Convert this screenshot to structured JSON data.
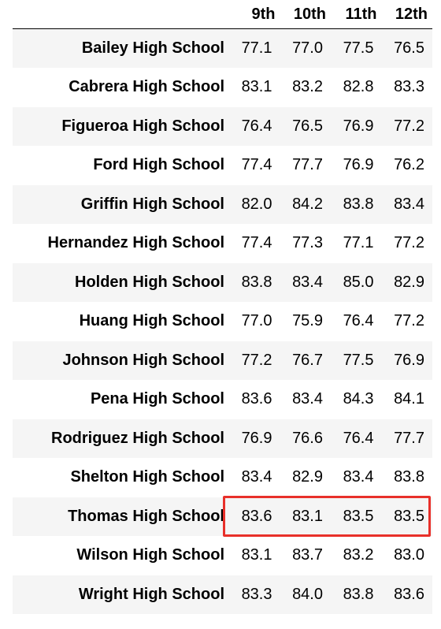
{
  "table": {
    "columns": [
      "9th",
      "10th",
      "11th",
      "12th"
    ],
    "rows": [
      {
        "school": "Bailey High School",
        "values": [
          "77.1",
          "77.0",
          "77.5",
          "76.5"
        ]
      },
      {
        "school": "Cabrera High School",
        "values": [
          "83.1",
          "83.2",
          "82.8",
          "83.3"
        ]
      },
      {
        "school": "Figueroa High School",
        "values": [
          "76.4",
          "76.5",
          "76.9",
          "77.2"
        ]
      },
      {
        "school": "Ford High School",
        "values": [
          "77.4",
          "77.7",
          "76.9",
          "76.2"
        ]
      },
      {
        "school": "Griffin High School",
        "values": [
          "82.0",
          "84.2",
          "83.8",
          "83.4"
        ]
      },
      {
        "school": "Hernandez High School",
        "values": [
          "77.4",
          "77.3",
          "77.1",
          "77.2"
        ]
      },
      {
        "school": "Holden High School",
        "values": [
          "83.8",
          "83.4",
          "85.0",
          "82.9"
        ]
      },
      {
        "school": "Huang High School",
        "values": [
          "77.0",
          "75.9",
          "76.4",
          "77.2"
        ]
      },
      {
        "school": "Johnson High School",
        "values": [
          "77.2",
          "76.7",
          "77.5",
          "76.9"
        ]
      },
      {
        "school": "Pena High School",
        "values": [
          "83.6",
          "83.4",
          "84.3",
          "84.1"
        ]
      },
      {
        "school": "Rodriguez High School",
        "values": [
          "76.9",
          "76.6",
          "76.4",
          "77.7"
        ]
      },
      {
        "school": "Shelton High School",
        "values": [
          "83.4",
          "82.9",
          "83.4",
          "83.8"
        ]
      },
      {
        "school": "Thomas High School",
        "values": [
          "83.6",
          "83.1",
          "83.5",
          "83.5"
        ]
      },
      {
        "school": "Wilson High School",
        "values": [
          "83.1",
          "83.7",
          "83.2",
          "83.0"
        ]
      },
      {
        "school": "Wright High School",
        "values": [
          "83.3",
          "84.0",
          "83.8",
          "83.6"
        ]
      }
    ]
  },
  "highlight": {
    "row_school": "Thomas High School",
    "color": "#e8302a"
  }
}
